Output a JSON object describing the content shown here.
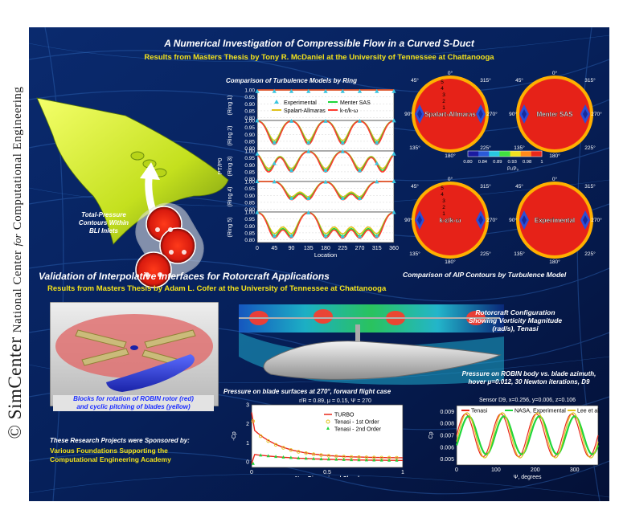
{
  "side_credit": {
    "part1": "© SimCenter",
    "part2": "National Center",
    "italic": "for",
    "part3": "Computational Engineering"
  },
  "section1": {
    "title": "A Numerical Investigation of Compressible Flow in a Curved S-Duct",
    "subtitle": "Results from Masters Thesis by Tony R. McDaniel at the University of Tennessee at Chattanooga",
    "inlet_caption": [
      "Total-Pressure",
      "Contours Within",
      "BLI Inlets"
    ]
  },
  "ring_plot": {
    "title": "Comparison of Turbulence Models by Ring",
    "xlabel": "Location",
    "ylabel": "PT/P0",
    "ring_labels": [
      "(Ring 1)",
      "(Ring 2)",
      "(Ring 3)",
      "(Ring 4)",
      "(Ring 5)"
    ],
    "y_ticks": [
      "1.00",
      "0.95",
      "0.90",
      "0.85",
      "0.80"
    ],
    "x_ticks": [
      "0",
      "45",
      "90",
      "135",
      "180",
      "225",
      "270",
      "315",
      "360"
    ],
    "legend": [
      "Experimental",
      "Menter SAS",
      "Spalart-Allmaras",
      "k-ε/k-ω"
    ],
    "colors": {
      "experimental": "#39c6e0",
      "menter": "#1fd63a",
      "spalart": "#e0c21c",
      "keps": "#ff3b2f"
    }
  },
  "aip": {
    "models": [
      "Spalart-Allmaras",
      "Menter SAS",
      "k-ε/k-ω",
      "Experimental"
    ],
    "angles": [
      "0°",
      "45°",
      "315°",
      "90°",
      "270°",
      "135°",
      "225°",
      "180°"
    ],
    "ring_numbers": [
      "5",
      "4",
      "3",
      "2",
      "1"
    ],
    "colorbar_ticks": [
      "0.80",
      "0.84",
      "0.89",
      "0.93",
      "0.98",
      "1"
    ],
    "colorbar_label": "Pₜ/P₀",
    "caption": "Comparison of AIP Contours by Turbulence Model"
  },
  "section2": {
    "title": "Validation of Interpolative Interfaces for Rotorcraft Applications",
    "subtitle": "Results from Masters Thesis by Adam L. Cofer at the University of Tennessee at Chattanooga",
    "blocks_caption": [
      "Blocks for rotation of ROBIN rotor (red)",
      "and cyclic pitching of blades (yellow)"
    ],
    "rotorcraft_caption": [
      "Rotorcraft Configuration",
      "Showing Vorticity Magnitude",
      "(rad/s), Tenasi"
    ]
  },
  "sponsor": {
    "heading": "These Research Projects were Sponsored by:",
    "lines": [
      "Various Foundations Supporting the",
      "Computational  Engineering Academy"
    ]
  },
  "cp_plot": {
    "caption": "Pressure on blade surfaces at 270°, forward flight case",
    "params": "r/R = 0.89, μ = 0.15, Ψ = 270",
    "ylabel": "-Cp",
    "xlabel": "Non-Dimensional Chord",
    "y_ticks": [
      "3",
      "2",
      "1",
      "0"
    ],
    "x_ticks": [
      "0",
      "0.5",
      "1"
    ],
    "legend": [
      "TURBO",
      "Tenasi - 1st Order",
      "Tenasi - 2nd Order"
    ]
  },
  "robin_plot": {
    "caption": [
      "Pressure on ROBIN body vs. blade azimuth,",
      "hover μ=0.012, 30 Newton iterations, D9"
    ],
    "sensor": "Sensor D9, x=0.256, y=0.006, z=0.106",
    "ylabel": "Cp",
    "xlabel": "Ψ, degrees",
    "y_ticks": [
      "0.009",
      "0.008",
      "0.007",
      "0.006",
      "0.005"
    ],
    "x_ticks": [
      "0",
      "100",
      "200",
      "300"
    ],
    "legend": [
      "Tenasi",
      "NASA, Experimental",
      "Lee et al."
    ]
  }
}
